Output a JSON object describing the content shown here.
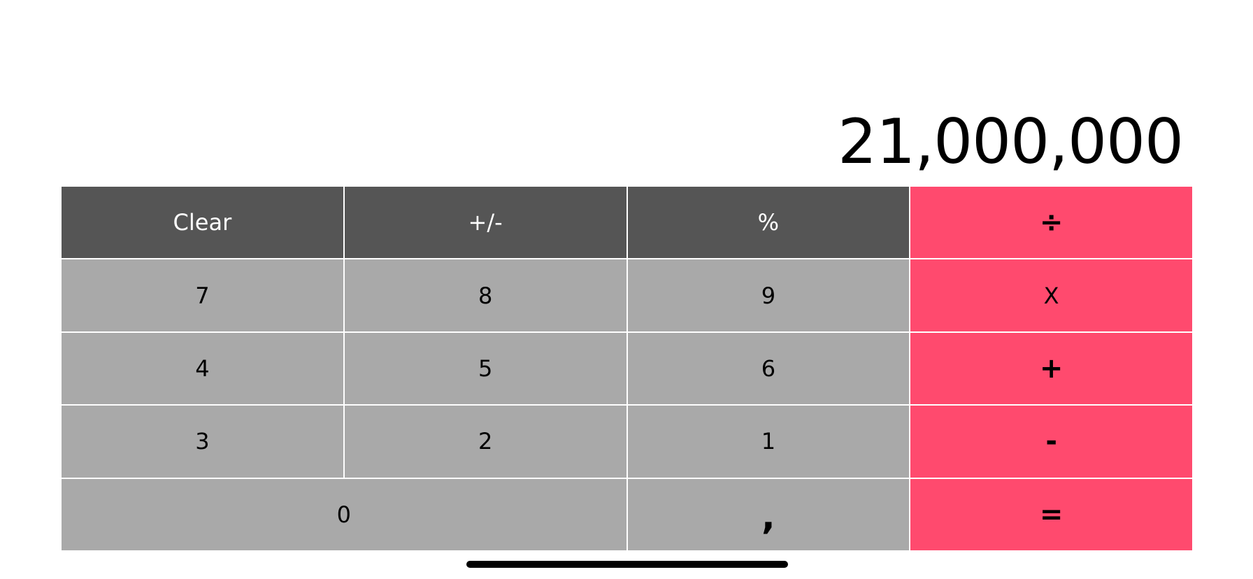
{
  "display": {
    "value": "21,000,000"
  },
  "keys": {
    "clear": "Clear",
    "sign": "+/-",
    "percent": "%",
    "divide": "÷",
    "seven": "7",
    "eight": "8",
    "nine": "9",
    "multiply": "X",
    "four": "4",
    "five": "5",
    "six": "6",
    "add": "+",
    "three": "3",
    "two": "2",
    "one": "1",
    "subtract": "-",
    "zero": "0",
    "decimal": ",",
    "equals": "="
  },
  "colors": {
    "function_key": "#555555",
    "number_key": "#a9a9a9",
    "operator_key": "#ff4a6e",
    "background": "#ffffff"
  }
}
